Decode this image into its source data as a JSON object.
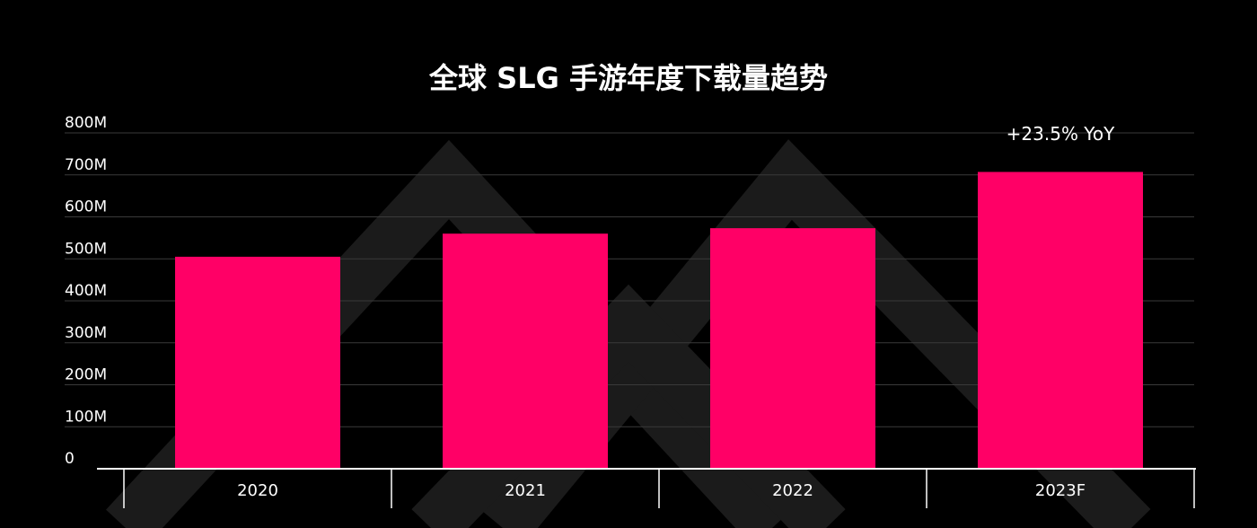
{
  "chart_data": {
    "type": "bar",
    "title": "全球 SLG 手游年度下载量趋势",
    "categories": [
      "2020",
      "2021",
      "2022",
      "2023F"
    ],
    "series": [
      {
        "values": [
          505,
          560,
          573,
          707
        ]
      }
    ],
    "yticks": [
      "0",
      "100M",
      "200M",
      "300M",
      "400M",
      "500M",
      "600M",
      "700M",
      "800M"
    ],
    "ylim": [
      0,
      800
    ],
    "grid": true,
    "annotation": {
      "text": "+23.5% YoY",
      "category": "2023F"
    },
    "colors": {
      "bar": "#FF0066",
      "background": "#000000",
      "grid": "#3a3a3a",
      "text": "#ffffff",
      "watermark": "#1b1b1b"
    }
  }
}
